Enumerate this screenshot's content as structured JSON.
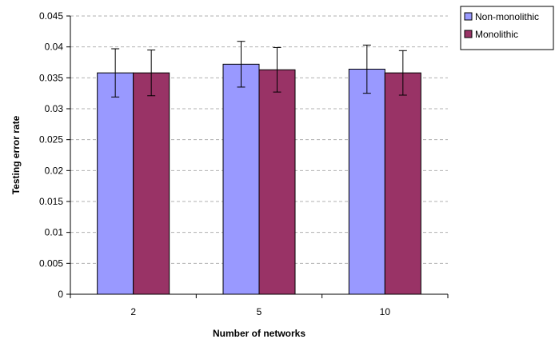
{
  "chart_data": {
    "type": "bar",
    "xlabel": "Number of networks",
    "ylabel": "Testing error rate",
    "categories": [
      "2",
      "5",
      "10"
    ],
    "ylim": [
      0,
      0.045
    ],
    "yticks": [
      "0",
      "0.005",
      "0.01",
      "0.015",
      "0.02",
      "0.025",
      "0.03",
      "0.035",
      "0.04",
      "0.045"
    ],
    "grid": "horizontal dashed",
    "legend_position": "top-right",
    "series": [
      {
        "name": "Non-monolithic",
        "color": "#9999ff",
        "values": [
          0.0358,
          0.0372,
          0.0364
        ],
        "error": [
          0.0039,
          0.0037,
          0.0039
        ]
      },
      {
        "name": "Monolithic",
        "color": "#993366",
        "values": [
          0.0358,
          0.0363,
          0.0358
        ],
        "error": [
          0.0037,
          0.0036,
          0.0036
        ]
      }
    ]
  }
}
